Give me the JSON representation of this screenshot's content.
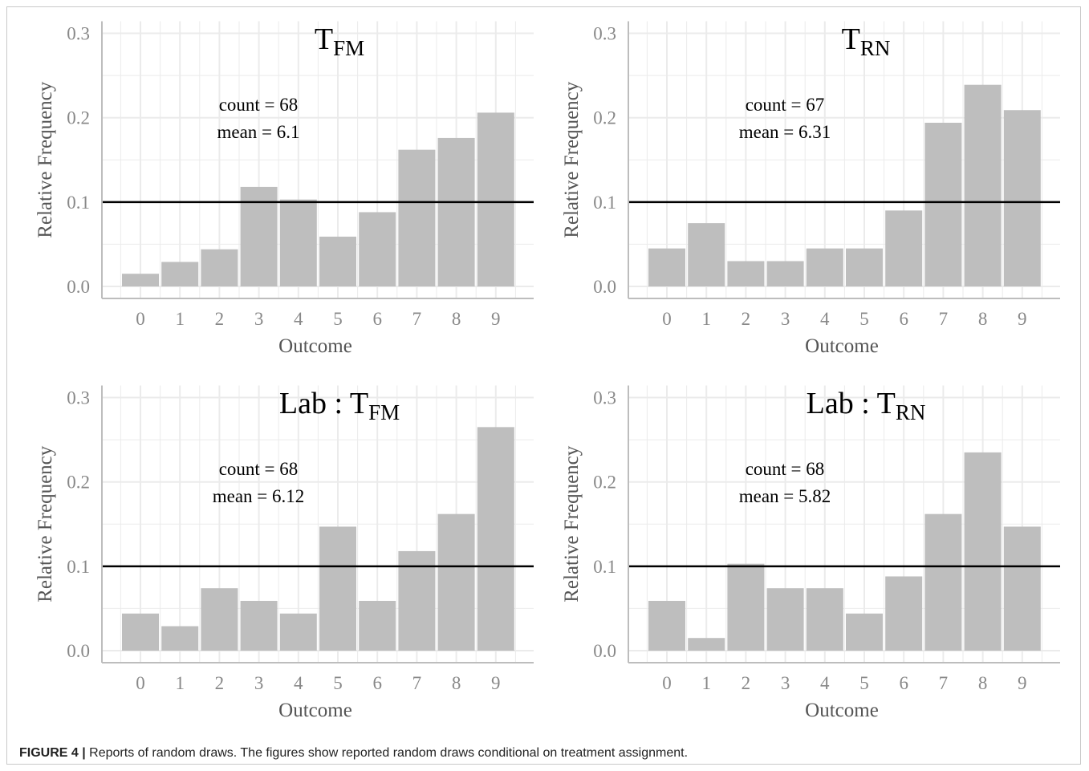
{
  "caption": {
    "label": "FIGURE 4 |",
    "text": "Reports of random draws. The figures show reported random draws conditional on treatment assignment."
  },
  "style": {
    "bar_color": "#bebebe",
    "grid_color": "#ebebeb",
    "reference_line_color": "#000000",
    "axis_text_color": "#888888",
    "axis_title_color": "#555555"
  },
  "chart_data": [
    {
      "type": "bar",
      "title_main": "T",
      "title_sub": "FM",
      "categories": [
        "0",
        "1",
        "2",
        "3",
        "4",
        "5",
        "6",
        "7",
        "8",
        "9"
      ],
      "values": [
        0.015,
        0.029,
        0.044,
        0.118,
        0.103,
        0.059,
        0.088,
        0.162,
        0.176,
        0.206
      ],
      "reference_value": 0.1,
      "annotation": [
        "count = 68",
        "mean = 6.1"
      ],
      "xlabel": "Outcome",
      "ylabel": "Relative Frequency",
      "ylim": [
        0,
        0.3
      ],
      "yticks": [
        "0.0",
        "0.1",
        "0.2",
        "0.3"
      ],
      "grid": true
    },
    {
      "type": "bar",
      "title_main": "T",
      "title_sub": "RN",
      "categories": [
        "0",
        "1",
        "2",
        "3",
        "4",
        "5",
        "6",
        "7",
        "8",
        "9"
      ],
      "values": [
        0.045,
        0.075,
        0.03,
        0.03,
        0.045,
        0.045,
        0.09,
        0.194,
        0.239,
        0.209
      ],
      "reference_value": 0.1,
      "annotation": [
        "count = 67",
        "mean = 6.31"
      ],
      "xlabel": "Outcome",
      "ylabel": "Relative Frequency",
      "ylim": [
        0,
        0.3
      ],
      "yticks": [
        "0.0",
        "0.1",
        "0.2",
        "0.3"
      ],
      "grid": true
    },
    {
      "type": "bar",
      "title_main": "Lab : T",
      "title_sub": "FM",
      "categories": [
        "0",
        "1",
        "2",
        "3",
        "4",
        "5",
        "6",
        "7",
        "8",
        "9"
      ],
      "values": [
        0.044,
        0.029,
        0.074,
        0.059,
        0.044,
        0.147,
        0.059,
        0.118,
        0.162,
        0.265
      ],
      "reference_value": 0.1,
      "annotation": [
        "count = 68",
        "mean = 6.12"
      ],
      "xlabel": "Outcome",
      "ylabel": "Relative Frequency",
      "ylim": [
        0,
        0.3
      ],
      "yticks": [
        "0.0",
        "0.1",
        "0.2",
        "0.3"
      ],
      "grid": true
    },
    {
      "type": "bar",
      "title_main": "Lab : T",
      "title_sub": "RN",
      "categories": [
        "0",
        "1",
        "2",
        "3",
        "4",
        "5",
        "6",
        "7",
        "8",
        "9"
      ],
      "values": [
        0.059,
        0.015,
        0.103,
        0.074,
        0.074,
        0.044,
        0.088,
        0.162,
        0.235,
        0.147
      ],
      "reference_value": 0.1,
      "annotation": [
        "count = 68",
        "mean = 5.82"
      ],
      "xlabel": "Outcome",
      "ylabel": "Relative Frequency",
      "ylim": [
        0,
        0.3
      ],
      "yticks": [
        "0.0",
        "0.1",
        "0.2",
        "0.3"
      ],
      "grid": true
    }
  ]
}
